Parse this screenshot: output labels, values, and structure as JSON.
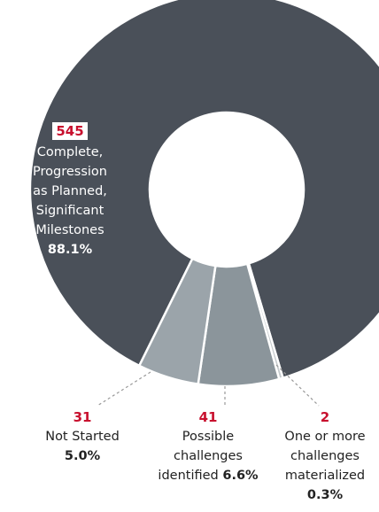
{
  "chart_data": {
    "type": "donut",
    "categories": [
      "Complete, Progression as Planned, Significant Milestones",
      "One or more challenges materialized",
      "Possible challenges identified",
      "Not Started"
    ],
    "values": [
      545,
      2,
      41,
      31
    ],
    "shares": [
      88.1,
      0.3,
      6.6,
      5.0
    ],
    "share_labels": [
      "88.1%",
      "0.3%",
      "6.6%",
      "5.0%"
    ],
    "colors": [
      "#4a5059",
      "#c5cacd",
      "#8b959b",
      "#9ba4aa"
    ]
  }
}
